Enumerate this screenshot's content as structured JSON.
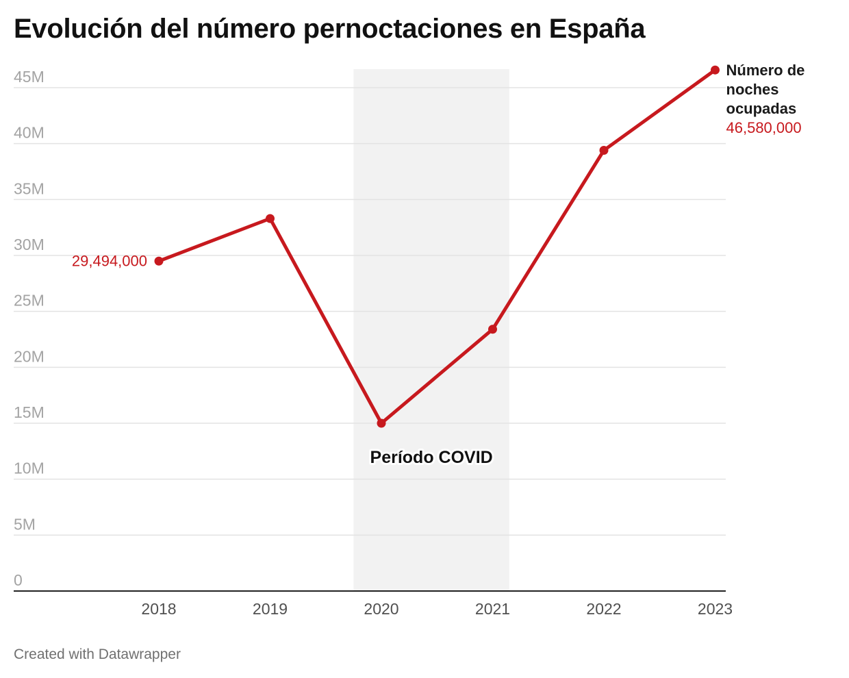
{
  "title": "Evolución del número pernoctaciones en España",
  "footer": "Created with Datawrapper",
  "colors": {
    "series": "#c7191e",
    "shade": "#f2f2f2",
    "grid": "#e3e3e3",
    "axis": "#222222"
  },
  "chart_data": {
    "type": "line",
    "categories": [
      "2018",
      "2019",
      "2020",
      "2021",
      "2022",
      "2023"
    ],
    "series": [
      {
        "name": "Número de noches ocupadas",
        "values": [
          29494000,
          33300000,
          15000000,
          23400000,
          39400000,
          46580000
        ]
      }
    ],
    "ylim": [
      0,
      45000000
    ],
    "y_ticks": [
      {
        "value": 0,
        "label": "0"
      },
      {
        "value": 5000000,
        "label": "5M"
      },
      {
        "value": 10000000,
        "label": "10M"
      },
      {
        "value": 15000000,
        "label": "15M"
      },
      {
        "value": 20000000,
        "label": "20M"
      },
      {
        "value": 25000000,
        "label": "25M"
      },
      {
        "value": 30000000,
        "label": "30M"
      },
      {
        "value": 35000000,
        "label": "35M"
      },
      {
        "value": 40000000,
        "label": "40M"
      },
      {
        "value": 45000000,
        "label": "45M"
      }
    ],
    "data_labels": {
      "first": "29,494,000",
      "last": "46,580,000"
    },
    "series_label_lines": [
      "Número de",
      "noches",
      "ocupadas"
    ],
    "highlight_range": {
      "from": "2019.75",
      "to": "2021.15",
      "label": "Período COVID"
    },
    "grid": true,
    "legend": "direct label at end of line"
  }
}
